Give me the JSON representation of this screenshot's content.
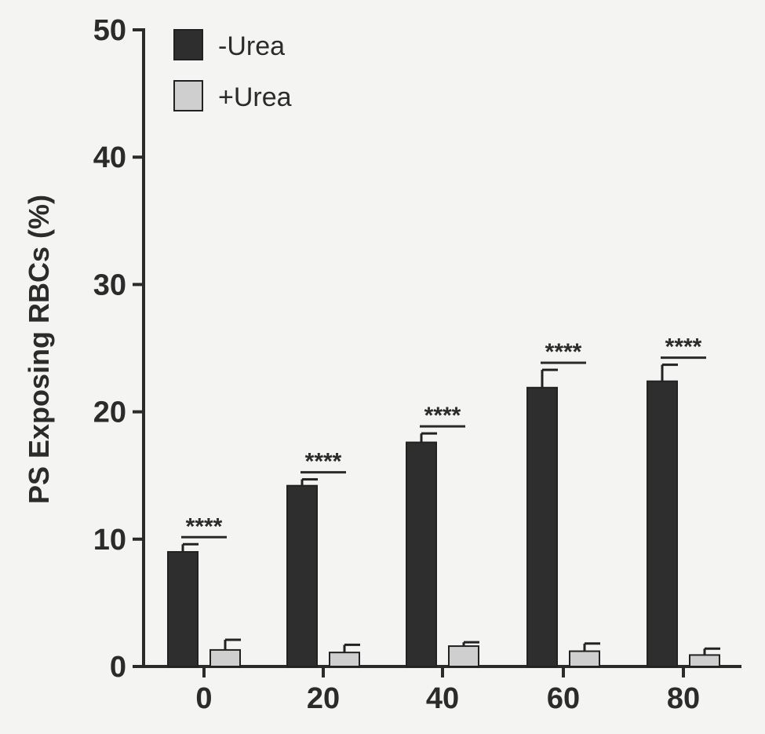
{
  "chart_data": {
    "type": "bar",
    "ylabel": "PS Exposing RBCs (%)",
    "xlabel": "",
    "categories": [
      "0",
      "20",
      "40",
      "60",
      "80"
    ],
    "ylim": [
      0,
      50
    ],
    "yticks": [
      0,
      10,
      20,
      30,
      40,
      50
    ],
    "series": [
      {
        "name": "-Urea",
        "color": "#2e2e2e",
        "values": [
          9.0,
          14.2,
          17.6,
          21.9,
          22.4
        ],
        "errors": [
          0.6,
          0.5,
          0.7,
          1.4,
          1.3
        ]
      },
      {
        "name": "+Urea",
        "color": "#cfcfcf",
        "values": [
          1.3,
          1.1,
          1.6,
          1.2,
          0.9
        ],
        "errors": [
          0.8,
          0.6,
          0.3,
          0.6,
          0.5
        ]
      }
    ],
    "annotations": [
      "****",
      "****",
      "****",
      "****",
      "****"
    ],
    "legend_position": "top-left",
    "grid": false
  }
}
